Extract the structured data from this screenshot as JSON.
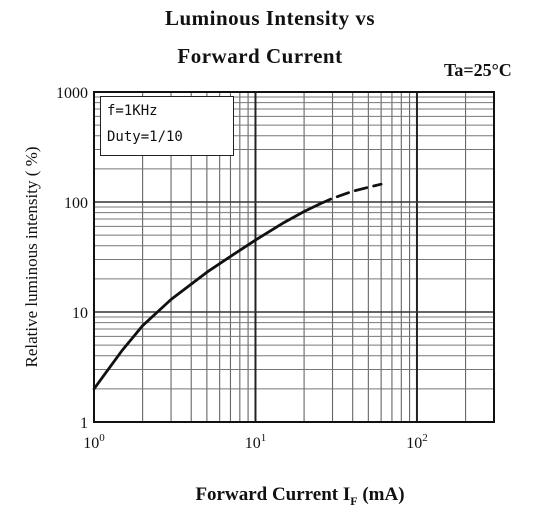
{
  "chart_data": {
    "type": "line",
    "title_line1": "Luminous Intensity vs",
    "title_line2": "Forward Current",
    "condition": "Ta=25°C",
    "xlabel": "Forward Current   I",
    "xlabel_sub": "F",
    "xlabel_unit": " (mA)",
    "ylabel": "Relative luminous intensity ( %)",
    "x_scale": "log",
    "y_scale": "log",
    "xlim": [
      1,
      300
    ],
    "ylim": [
      1,
      1000
    ],
    "x_ticks": [
      {
        "base": "10",
        "exp": "0",
        "value": 1
      },
      {
        "base": "10",
        "exp": "1",
        "value": 10
      },
      {
        "base": "10",
        "exp": "2",
        "value": 100
      }
    ],
    "y_ticks": [
      {
        "label": "1",
        "value": 1
      },
      {
        "label": "10",
        "value": 10
      },
      {
        "label": "100",
        "value": 100
      },
      {
        "label": "1000",
        "value": 1000
      }
    ],
    "grid": true,
    "legend_text": [
      "f=1KHz",
      "Duty=1/10"
    ],
    "legend_position": "top-left",
    "series": [
      {
        "style": "solid",
        "x": [
          1,
          1.5,
          2,
          3,
          5,
          7,
          10,
          15,
          20,
          25
        ],
        "y": [
          2,
          4.5,
          7.5,
          13,
          23,
          32,
          45,
          65,
          82,
          96
        ]
      },
      {
        "style": "dashed",
        "x": [
          25,
          30,
          40,
          50,
          60
        ],
        "y": [
          96,
          108,
          125,
          136,
          145
        ]
      }
    ]
  }
}
